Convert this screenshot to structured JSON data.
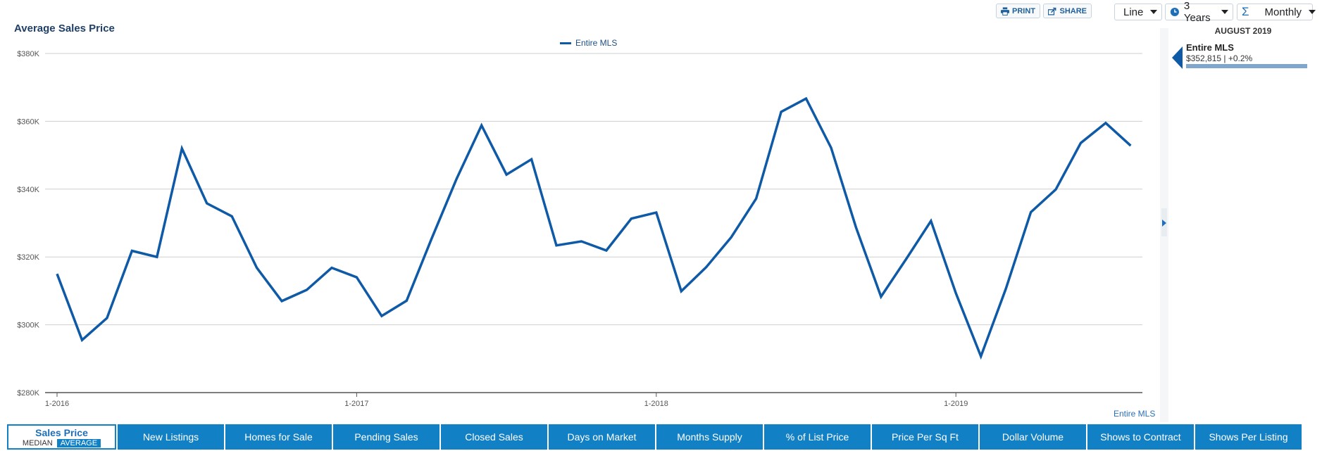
{
  "title": "Average Sales Price",
  "legend": {
    "label": "Entire MLS",
    "color": "#0e5aa7"
  },
  "toolbar": {
    "print_label": "PRINT",
    "share_label": "SHARE",
    "chart_type": "Line",
    "range": "3 Years",
    "interval": "Monthly"
  },
  "side_panel": {
    "date": "AUGUST 2019",
    "series_name": "Entire MLS",
    "value_text": "$352,815 | +0.2%"
  },
  "footer_label": "Entire MLS",
  "bottom_tabs": {
    "active": {
      "label": "Sales Price",
      "median": "MEDIAN",
      "average": "AVERAGE"
    },
    "others": [
      "New Listings",
      "Homes for Sale",
      "Pending Sales",
      "Closed Sales",
      "Days on Market",
      "Months Supply",
      "% of List Price",
      "Price Per Sq Ft",
      "Dollar Volume",
      "Shows to Contract",
      "Shows Per Listing"
    ]
  },
  "chart_data": {
    "type": "line",
    "title": "Average Sales Price",
    "xlabel": "",
    "ylabel": "",
    "ylim": [
      280000,
      380000
    ],
    "yticks": [
      {
        "value": 380000,
        "label": "$380K"
      },
      {
        "value": 360000,
        "label": "$360K"
      },
      {
        "value": 340000,
        "label": "$340K"
      },
      {
        "value": 320000,
        "label": "$320K"
      },
      {
        "value": 300000,
        "label": "$300K"
      },
      {
        "value": 280000,
        "label": "$280K"
      }
    ],
    "xticks": [
      {
        "index": 0,
        "label": "1-2016"
      },
      {
        "index": 12,
        "label": "1-2017"
      },
      {
        "index": 24,
        "label": "1-2018"
      },
      {
        "index": 36,
        "label": "1-2019"
      }
    ],
    "grid": true,
    "legend_position": "top-center",
    "categories": [
      "1-2016",
      "2-2016",
      "3-2016",
      "4-2016",
      "5-2016",
      "6-2016",
      "7-2016",
      "8-2016",
      "9-2016",
      "10-2016",
      "11-2016",
      "12-2016",
      "1-2017",
      "2-2017",
      "3-2017",
      "4-2017",
      "5-2017",
      "6-2017",
      "7-2017",
      "8-2017",
      "9-2017",
      "10-2017",
      "11-2017",
      "12-2017",
      "1-2018",
      "2-2018",
      "3-2018",
      "4-2018",
      "5-2018",
      "6-2018",
      "7-2018",
      "8-2018",
      "9-2018",
      "10-2018",
      "11-2018",
      "12-2018",
      "1-2019",
      "2-2019",
      "3-2019",
      "4-2019",
      "5-2019",
      "6-2019",
      "7-2019",
      "8-2019"
    ],
    "series": [
      {
        "name": "Entire MLS",
        "color": "#0e5aa7",
        "values": [
          315000,
          295500,
          302000,
          321800,
          320000,
          352000,
          335800,
          332000,
          316800,
          307000,
          310300,
          316800,
          314000,
          302600,
          307100,
          325400,
          343000,
          358800,
          344300,
          348800,
          323400,
          324600,
          321900,
          331300,
          333100,
          309900,
          317000,
          325800,
          337200,
          362800,
          366700,
          352200,
          328700,
          308300,
          319300,
          330600,
          309300,
          290700,
          310600,
          333200,
          339900,
          353600,
          359500,
          352800
        ]
      }
    ]
  }
}
